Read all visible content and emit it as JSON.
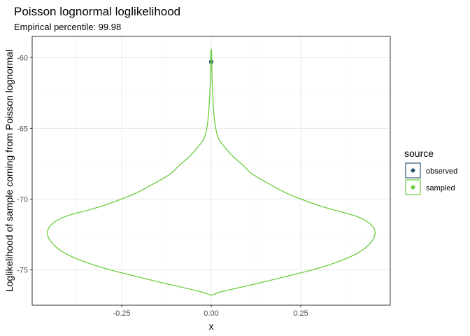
{
  "chart_data": {
    "type": "violin",
    "title": "Poisson lognormal loglikelihood",
    "subtitle": "Empirical percentile: 99.98",
    "xlabel": "x",
    "ylabel": "Loglikelihood of sample coming from Poisson lognormal",
    "xlim": [
      -0.5,
      0.5
    ],
    "ylim": [
      -77.5,
      -58.5
    ],
    "x_ticks": [
      -0.25,
      0.0,
      0.25
    ],
    "x_tick_labels": [
      "-0.25",
      "0.00",
      "0.25"
    ],
    "y_ticks": [
      -60,
      -65,
      -70,
      -75
    ],
    "y_tick_labels": [
      "-60",
      "-65",
      "-70",
      "-75"
    ],
    "grid": true,
    "legend": {
      "title": "source",
      "position": "right",
      "entries": [
        {
          "label": "observed",
          "color": "#2b5775"
        },
        {
          "label": "sampled",
          "color": "#6dcc3f"
        }
      ]
    },
    "series": [
      {
        "name": "observed",
        "geom": "point",
        "color": "#2b5775",
        "points": [
          {
            "x": 0.0,
            "y": -60.3
          }
        ]
      },
      {
        "name": "sampled",
        "geom": "violin",
        "color": "#6dcc3f",
        "center_x": 0.0,
        "y_range": [
          -76.8,
          -59.4
        ],
        "half_width_profile": [
          {
            "y": -76.8,
            "w": 0.0
          },
          {
            "y": -76.6,
            "w": 0.02
          },
          {
            "y": -76.3,
            "w": 0.07
          },
          {
            "y": -75.9,
            "w": 0.14
          },
          {
            "y": -75.4,
            "w": 0.22
          },
          {
            "y": -74.9,
            "w": 0.3
          },
          {
            "y": -74.3,
            "w": 0.37
          },
          {
            "y": -73.7,
            "w": 0.42
          },
          {
            "y": -73.0,
            "w": 0.45
          },
          {
            "y": -72.4,
            "w": 0.46
          },
          {
            "y": -71.8,
            "w": 0.45
          },
          {
            "y": -71.2,
            "w": 0.41
          },
          {
            "y": -70.7,
            "w": 0.33
          },
          {
            "y": -70.2,
            "w": 0.27
          },
          {
            "y": -69.6,
            "w": 0.21
          },
          {
            "y": -68.9,
            "w": 0.16
          },
          {
            "y": -68.2,
            "w": 0.11
          },
          {
            "y": -67.6,
            "w": 0.09
          },
          {
            "y": -67.0,
            "w": 0.06
          },
          {
            "y": -66.4,
            "w": 0.04
          },
          {
            "y": -65.8,
            "w": 0.02
          },
          {
            "y": -65.0,
            "w": 0.012
          },
          {
            "y": -64.0,
            "w": 0.007
          },
          {
            "y": -63.0,
            "w": 0.005
          },
          {
            "y": -62.0,
            "w": 0.003
          },
          {
            "y": -61.0,
            "w": 0.002
          },
          {
            "y": -60.0,
            "w": 0.0015
          },
          {
            "y": -59.4,
            "w": 0.001
          }
        ]
      }
    ]
  }
}
